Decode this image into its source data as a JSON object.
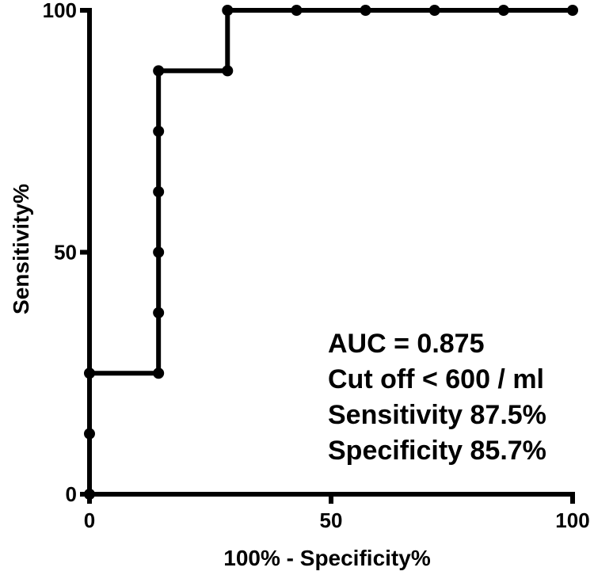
{
  "chart_data": {
    "type": "line",
    "xlabel": "100% - Specificity%",
    "ylabel": "Sensitivity%",
    "xlim": [
      0,
      100
    ],
    "ylim": [
      0,
      100
    ],
    "x_ticks": [
      0,
      50,
      100
    ],
    "y_ticks": [
      0,
      50,
      100
    ],
    "x_tick_labels": [
      "0",
      "50",
      "100"
    ],
    "y_tick_labels": [
      "0",
      "50",
      "100"
    ],
    "grid": false,
    "series": [
      {
        "step_path": [
          [
            0,
            0
          ],
          [
            0,
            25
          ],
          [
            14.29,
            25
          ],
          [
            14.29,
            87.5
          ],
          [
            28.57,
            87.5
          ],
          [
            28.57,
            100
          ],
          [
            100,
            100
          ]
        ],
        "points": [
          [
            0,
            0
          ],
          [
            0,
            12.5
          ],
          [
            0,
            25
          ],
          [
            14.29,
            25
          ],
          [
            14.29,
            37.5
          ],
          [
            14.29,
            50
          ],
          [
            14.29,
            62.5
          ],
          [
            14.29,
            75
          ],
          [
            14.29,
            87.5
          ],
          [
            28.57,
            87.5
          ],
          [
            28.57,
            100
          ],
          [
            42.86,
            100
          ],
          [
            57.14,
            100
          ],
          [
            71.43,
            100
          ],
          [
            85.71,
            100
          ],
          [
            100,
            100
          ]
        ]
      }
    ],
    "annotations": [
      "AUC = 0.875",
      "Cut off < 600 / ml",
      "Sensitivity 87.5%",
      "Specificity 85.7%"
    ]
  }
}
